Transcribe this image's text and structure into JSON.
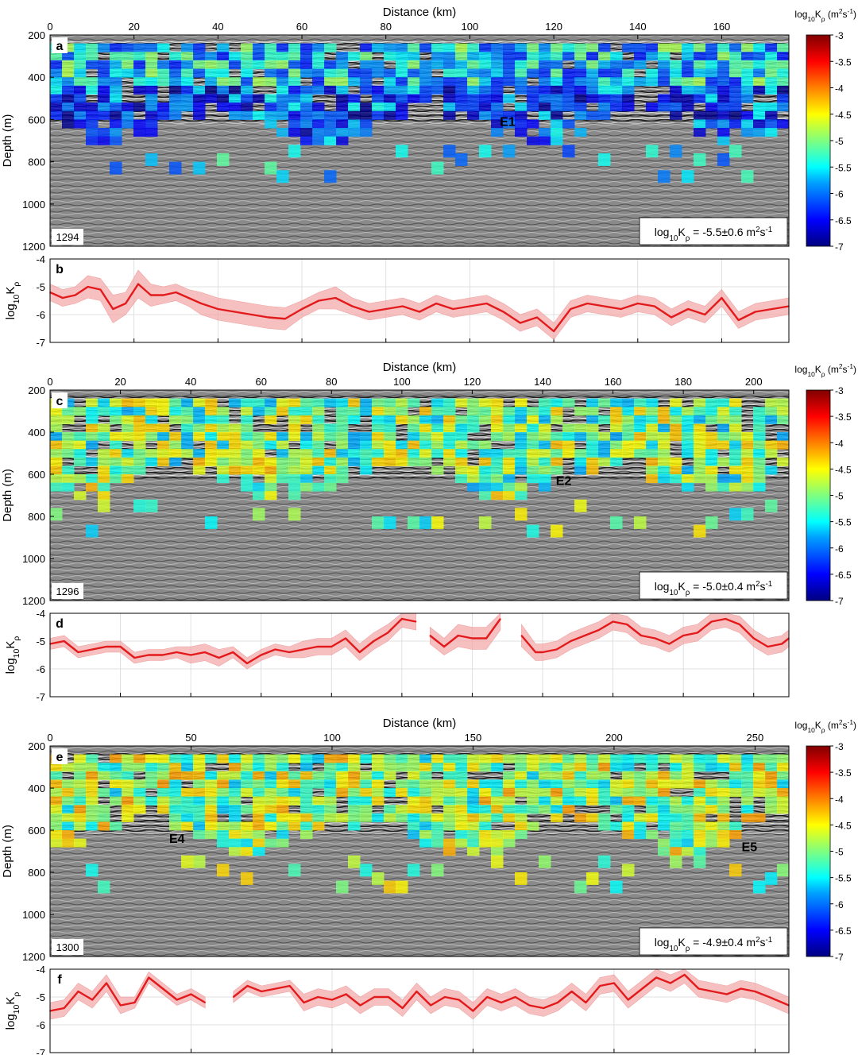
{
  "figure": {
    "colorbar": {
      "label": "log10Kρ (m2s-1)",
      "ticks": [
        "-3",
        "-3.5",
        "-4",
        "-4.5",
        "-5",
        "-5.5",
        "-6",
        "-6.5",
        "-7"
      ]
    }
  },
  "chart_data": [
    {
      "type": "heatmap",
      "panel_letter": "a",
      "line_id": "1294",
      "xlabel": "Distance (km)",
      "ylabel": "Depth (m)",
      "xlim": [
        0,
        176
      ],
      "ylim": [
        1200,
        200
      ],
      "x_ticks": [
        "0",
        "20",
        "40",
        "60",
        "80",
        "100",
        "120",
        "140",
        "160"
      ],
      "y_ticks": [
        "200",
        "400",
        "600",
        "800",
        "1000",
        "1200"
      ],
      "mean_label": "log10Kρ = -5.5±0.6 m2s-1",
      "eddy_labels": [
        {
          "text": "E1",
          "x": 109,
          "depth": 630
        }
      ],
      "colorbar_range": [
        -7,
        -3
      ]
    },
    {
      "type": "line",
      "panel_letter": "b",
      "ylabel": "log10Kρ",
      "xlim": [
        0,
        176
      ],
      "ylim": [
        -7,
        -4
      ],
      "y_ticks": [
        "-4",
        "-5",
        "-6",
        "-7"
      ],
      "x": [
        0,
        3,
        6,
        9,
        12,
        15,
        18,
        21,
        24,
        27,
        30,
        33,
        36,
        40,
        44,
        48,
        52,
        56,
        60,
        64,
        68,
        72,
        76,
        80,
        84,
        88,
        92,
        96,
        100,
        104,
        108,
        112,
        116,
        120,
        124,
        128,
        132,
        136,
        140,
        144,
        148,
        152,
        156,
        160,
        164,
        168,
        172,
        176
      ],
      "values": [
        -5.2,
        -5.4,
        -5.3,
        -5.0,
        -5.1,
        -5.8,
        -5.6,
        -4.9,
        -5.3,
        -5.3,
        -5.2,
        -5.4,
        -5.6,
        -5.8,
        -5.9,
        -6.0,
        -6.1,
        -6.15,
        -5.8,
        -5.5,
        -5.4,
        -5.7,
        -5.9,
        -5.8,
        -5.7,
        -5.9,
        -5.6,
        -5.8,
        -5.7,
        -5.6,
        -5.9,
        -6.3,
        -6.1,
        -6.6,
        -5.8,
        -5.6,
        -5.7,
        -5.8,
        -5.6,
        -5.7,
        -6.1,
        -5.8,
        -6.0,
        -5.4,
        -6.2,
        -5.9,
        -5.8,
        -5.7
      ],
      "band": [
        0.3,
        0.3,
        0.3,
        0.4,
        0.4,
        0.5,
        0.4,
        0.5,
        0.4,
        0.3,
        0.3,
        0.3,
        0.4,
        0.4,
        0.4,
        0.4,
        0.4,
        0.4,
        0.3,
        0.3,
        0.4,
        0.3,
        0.3,
        0.3,
        0.3,
        0.3,
        0.3,
        0.3,
        0.3,
        0.3,
        0.3,
        0.3,
        0.3,
        0.3,
        0.3,
        0.3,
        0.3,
        0.3,
        0.3,
        0.3,
        0.3,
        0.3,
        0.3,
        0.3,
        0.3,
        0.3,
        0.3,
        0.3
      ]
    },
    {
      "type": "heatmap",
      "panel_letter": "c",
      "line_id": "1296",
      "xlabel": "Distance (km)",
      "ylabel": "Depth (m)",
      "xlim": [
        0,
        210
      ],
      "ylim": [
        1200,
        200
      ],
      "x_ticks": [
        "0",
        "20",
        "40",
        "60",
        "80",
        "100",
        "120",
        "140",
        "160",
        "180",
        "200"
      ],
      "y_ticks": [
        "200",
        "400",
        "600",
        "800",
        "1000",
        "1200"
      ],
      "mean_label": "log10Kρ = -5.0±0.4 m2s-1",
      "eddy_labels": [
        {
          "text": "E2",
          "x": 146,
          "depth": 650
        }
      ],
      "colorbar_range": [
        -7,
        -3
      ]
    },
    {
      "type": "line",
      "panel_letter": "d",
      "ylabel": "log10Kρ",
      "xlim": [
        0,
        210
      ],
      "ylim": [
        -7,
        -4
      ],
      "y_ticks": [
        "-4",
        "-5",
        "-6",
        "-7"
      ],
      "x": [
        0,
        4,
        8,
        12,
        16,
        20,
        24,
        28,
        32,
        36,
        40,
        44,
        48,
        52,
        56,
        60,
        64,
        68,
        72,
        76,
        80,
        84,
        88,
        92,
        96,
        100,
        104,
        106,
        108,
        112,
        116,
        120,
        124,
        128,
        132,
        134,
        138,
        140,
        144,
        148,
        152,
        156,
        160,
        164,
        168,
        172,
        176,
        180,
        184,
        188,
        192,
        196,
        200,
        204,
        208,
        210
      ],
      "values": [
        -5.1,
        -5.0,
        -5.4,
        -5.3,
        -5.2,
        -5.2,
        -5.6,
        -5.5,
        -5.5,
        -5.4,
        -5.5,
        -5.4,
        -5.6,
        -5.4,
        -5.8,
        -5.5,
        -5.3,
        -5.4,
        -5.3,
        -5.2,
        -5.2,
        -4.9,
        -5.4,
        -5.0,
        -4.7,
        -4.2,
        -4.3,
        null,
        -4.8,
        -5.2,
        -4.8,
        -4.9,
        -4.9,
        -4.2,
        null,
        -4.8,
        -5.4,
        -5.4,
        -5.3,
        -5.0,
        -4.8,
        -4.6,
        -4.3,
        -4.4,
        -4.8,
        -4.9,
        -5.1,
        -4.8,
        -4.7,
        -4.3,
        -4.2,
        -4.4,
        -4.9,
        -5.2,
        -5.1,
        -4.9
      ],
      "band": [
        0.2,
        0.2,
        0.2,
        0.2,
        0.2,
        0.2,
        0.2,
        0.2,
        0.2,
        0.2,
        0.3,
        0.3,
        0.3,
        0.2,
        0.2,
        0.2,
        0.2,
        0.2,
        0.3,
        0.3,
        0.3,
        0.3,
        0.3,
        0.3,
        0.3,
        0.3,
        0.3,
        0.3,
        0.3,
        0.3,
        0.4,
        0.4,
        0.4,
        0.4,
        0.4,
        0.4,
        0.3,
        0.3,
        0.3,
        0.3,
        0.3,
        0.3,
        0.3,
        0.3,
        0.3,
        0.3,
        0.3,
        0.3,
        0.3,
        0.3,
        0.3,
        0.3,
        0.3,
        0.3,
        0.3,
        0.3
      ]
    },
    {
      "type": "heatmap",
      "panel_letter": "e",
      "line_id": "1300",
      "xlabel": "Distance (km)",
      "ylabel": "Depth (m)",
      "xlim": [
        0,
        262
      ],
      "ylim": [
        1200,
        200
      ],
      "x_ticks": [
        "0",
        "50",
        "100",
        "150",
        "200",
        "250"
      ],
      "y_ticks": [
        "200",
        "400",
        "600",
        "800",
        "1000",
        "1200"
      ],
      "mean_label": "log10Kρ = -4.9±0.4 m2s-1",
      "eddy_labels": [
        {
          "text": "E4",
          "x": 45,
          "depth": 660
        },
        {
          "text": "E5",
          "x": 248,
          "depth": 700
        }
      ],
      "colorbar_range": [
        -7,
        -3
      ]
    },
    {
      "type": "line",
      "panel_letter": "f",
      "ylabel": "log10Kρ",
      "xlim": [
        0,
        262
      ],
      "ylim": [
        -7,
        -4
      ],
      "y_ticks": [
        "-4",
        "-5",
        "-6",
        "-7"
      ],
      "x": [
        0,
        5,
        10,
        15,
        20,
        25,
        30,
        35,
        40,
        45,
        50,
        55,
        57,
        65,
        70,
        75,
        80,
        85,
        90,
        95,
        100,
        105,
        110,
        115,
        120,
        125,
        130,
        135,
        140,
        145,
        150,
        155,
        160,
        165,
        170,
        175,
        180,
        185,
        190,
        195,
        200,
        205,
        210,
        215,
        220,
        225,
        230,
        235,
        240,
        245,
        250,
        255,
        262
      ],
      "values": [
        -5.5,
        -5.4,
        -4.8,
        -5.1,
        -4.5,
        -5.3,
        -5.2,
        -4.3,
        -4.7,
        -5.1,
        -4.9,
        -5.2,
        null,
        -5.0,
        -4.6,
        -4.8,
        -4.7,
        -4.6,
        -5.2,
        -5.0,
        -5.1,
        -4.9,
        -5.3,
        -5.0,
        -5.0,
        -5.4,
        -4.8,
        -5.3,
        -5.0,
        -5.1,
        -5.5,
        -5.0,
        -5.2,
        -5.0,
        -5.3,
        -5.4,
        -5.2,
        -4.8,
        -5.2,
        -4.6,
        -4.5,
        -5.1,
        -4.7,
        -4.3,
        -4.5,
        -4.2,
        -4.7,
        -4.8,
        -4.9,
        -4.7,
        -4.8,
        -5.0,
        -5.3
      ],
      "band": [
        0.3,
        0.3,
        0.3,
        0.3,
        0.3,
        0.3,
        0.2,
        0.2,
        0.2,
        0.2,
        0.2,
        0.2,
        0.2,
        0.2,
        0.2,
        0.2,
        0.2,
        0.2,
        0.3,
        0.3,
        0.3,
        0.3,
        0.3,
        0.3,
        0.3,
        0.3,
        0.3,
        0.3,
        0.3,
        0.3,
        0.3,
        0.3,
        0.3,
        0.3,
        0.3,
        0.3,
        0.3,
        0.3,
        0.3,
        0.3,
        0.3,
        0.3,
        0.3,
        0.3,
        0.3,
        0.3,
        0.3,
        0.3,
        0.3,
        0.3,
        0.3,
        0.3,
        0.3
      ]
    }
  ]
}
